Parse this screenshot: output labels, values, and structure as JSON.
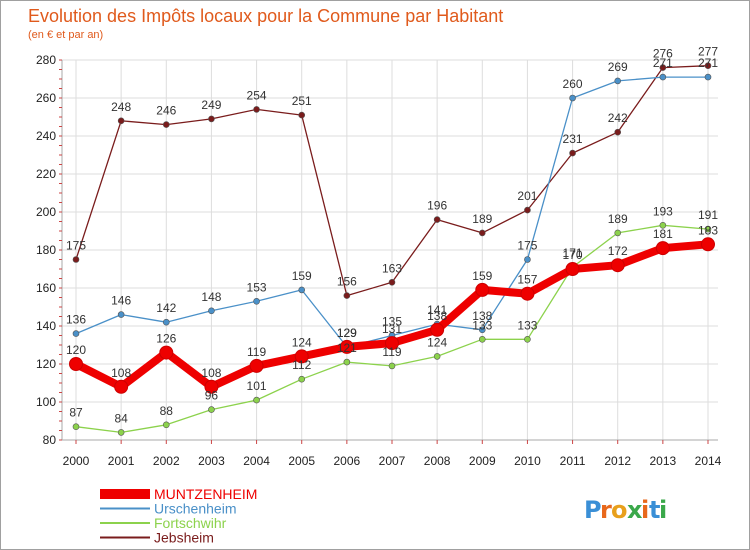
{
  "chart_data": {
    "type": "line",
    "title": "Evolution des Impôts locaux pour la Commune par Habitant",
    "subtitle": "(en € et par an)",
    "xlabel": "",
    "ylabel": "",
    "ylim": [
      80,
      280
    ],
    "yticks": [
      80,
      100,
      120,
      140,
      160,
      180,
      200,
      220,
      240,
      260,
      280
    ],
    "x": [
      "2000",
      "2001",
      "2002",
      "2003",
      "2004",
      "2005",
      "2006",
      "2007",
      "2008",
      "2009",
      "2010",
      "2011",
      "2012",
      "2013",
      "2014"
    ],
    "grid": true,
    "legend_position": "bottom-left",
    "series": [
      {
        "name": "Jebsheim",
        "color": "#7a1c1c",
        "values": [
          175,
          248,
          246,
          249,
          254,
          251,
          156,
          163,
          196,
          189,
          201,
          231,
          242,
          276,
          277
        ]
      },
      {
        "name": "Urschenheim",
        "color": "#4a90c8",
        "values": [
          136,
          146,
          142,
          148,
          153,
          159,
          129,
          135,
          141,
          138,
          175,
          260,
          269,
          271,
          271
        ]
      },
      {
        "name": "Fortschwihr",
        "color": "#8cd24c",
        "values": [
          87,
          84,
          88,
          96,
          101,
          112,
          121,
          119,
          124,
          133,
          133,
          171,
          189,
          193,
          191
        ]
      },
      {
        "name": "MUNTZENHEIM",
        "color": "#ee0000",
        "values": [
          120,
          108,
          126,
          108,
          119,
          124,
          129,
          131,
          138,
          159,
          157,
          170,
          172,
          181,
          183
        ]
      }
    ],
    "legend": [
      "MUNTZENHEIM",
      "Urschenheim",
      "Fortschwihr",
      "Jebsheim"
    ]
  },
  "brand": {
    "logo_text": "Proxiti"
  }
}
